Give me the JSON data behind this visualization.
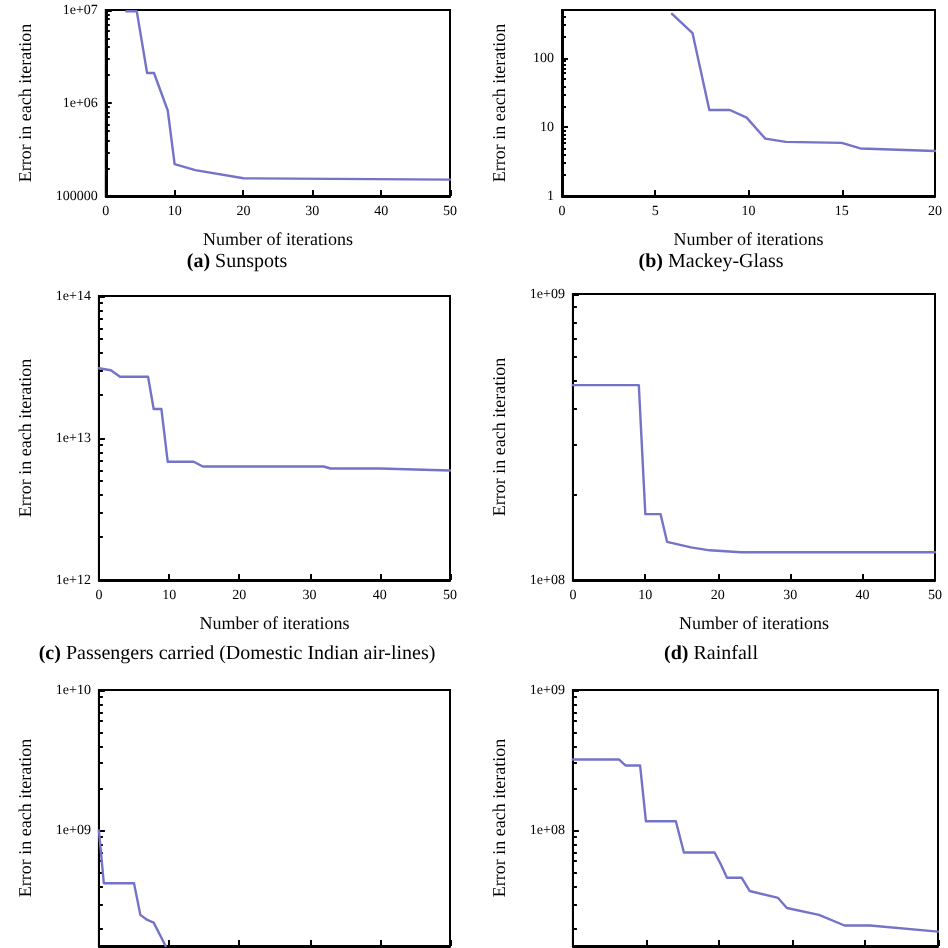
{
  "chart_data": [
    {
      "type": "line",
      "title": "(a) Sunspots",
      "xlabel": "Number of iterations",
      "ylabel": "Error in each iteration",
      "log": "y",
      "grid": false,
      "marker": "none",
      "line_style": "solid",
      "xlim": [
        0,
        50
      ],
      "xticks": [
        0,
        10,
        20,
        30,
        40,
        50
      ],
      "ylim": [
        100000,
        10000000
      ],
      "yticks": [
        100000,
        {
          "value": 1000000,
          "label": "1e+06"
        },
        {
          "value": 10000000,
          "label": "1e+07"
        }
      ],
      "series": [
        {
          "color": "#7373c8",
          "x": [
            3,
            4.5,
            6,
            7,
            9,
            10,
            13,
            20,
            50
          ],
          "values": [
            9700000,
            9700000,
            2100000,
            2100000,
            830000,
            220000,
            190000,
            155000,
            150000
          ]
        }
      ]
    },
    {
      "type": "line",
      "title": "(b) Mackey-Glass",
      "xlabel": "Number of iterations",
      "ylabel": "Error in each iteration",
      "log": "y",
      "grid": false,
      "marker": "none",
      "line_style": "solid",
      "xlim": [
        0,
        20
      ],
      "xticks": [
        0,
        5,
        10,
        15,
        20
      ],
      "ylim": [
        1,
        500
      ],
      "yticks": [
        1,
        10,
        100
      ],
      "series": [
        {
          "color": "#7373c8",
          "x": [
            5.9,
            7,
            7.9,
            9,
            9.9,
            10.9,
            12,
            15,
            16,
            20
          ],
          "values": [
            440,
            230,
            17.7,
            17.7,
            13.7,
            6.8,
            6.1,
            5.9,
            4.9,
            4.5
          ]
        }
      ]
    },
    {
      "type": "line",
      "title": "(c) Passengers carried (Domestic Indian air-lines)",
      "xlabel": "Number of iterations",
      "ylabel": "Error in each iteration",
      "log": "y",
      "grid": false,
      "marker": "none",
      "line_style": "solid",
      "xlim": [
        0,
        50
      ],
      "xticks": [
        0,
        10,
        20,
        30,
        40,
        50
      ],
      "ylim": [
        1000000000000,
        100000000000000
      ],
      "yticks": [
        {
          "value": 1000000000000,
          "label": "1e+12"
        },
        {
          "value": 10000000000000,
          "label": "1e+13"
        },
        {
          "value": 100000000000000,
          "label": "1e+14"
        }
      ],
      "series": [
        {
          "color": "#7373c8",
          "x": [
            0,
            1.7,
            3,
            7,
            7.8,
            8.9,
            9.8,
            13.5,
            14.8,
            32,
            33,
            40,
            50
          ],
          "values": [
            31000000000000,
            30000000000000,
            27000000000000,
            27000000000000,
            16000000000000,
            16000000000000,
            6800000000000,
            6800000000000,
            6300000000000,
            6300000000000,
            6100000000000,
            6100000000000,
            5900000000000
          ]
        }
      ]
    },
    {
      "type": "line",
      "title": "(d) Rainfall",
      "xlabel": "Number of iterations",
      "ylabel": "Error in each iteration",
      "log": "y",
      "grid": false,
      "marker": "none",
      "line_style": "solid",
      "xlim": [
        0,
        50
      ],
      "xticks": [
        0,
        10,
        20,
        30,
        40,
        50
      ],
      "ylim": [
        100000000,
        1000000000
      ],
      "yticks": [
        {
          "value": 100000000,
          "label": "1e+08"
        },
        {
          "value": 1000000000,
          "label": "1e+09"
        }
      ],
      "series": [
        {
          "color": "#7373c8",
          "x": [
            0,
            9.1,
            10,
            12.1,
            13,
            16.3,
            18.9,
            23.2,
            50
          ],
          "values": [
            480000000,
            480000000,
            170000000,
            170000000,
            136000000,
            130000000,
            127000000,
            125000000,
            125000000
          ]
        }
      ]
    },
    {
      "type": "line",
      "ylabel": "Error in each iteration",
      "log": "y",
      "grid": false,
      "marker": "none",
      "line_style": "solid",
      "tick_labels": "y",
      "xlim": [
        0,
        50
      ],
      "xticks": [
        {
          "value": 0,
          "label": null
        },
        {
          "value": 10,
          "label": null
        },
        {
          "value": 20,
          "label": null
        },
        {
          "value": 30,
          "label": null
        },
        {
          "value": 40,
          "label": null
        },
        {
          "value": 50,
          "label": null
        }
      ],
      "ylim": [
        150000000,
        10000000000
      ],
      "yticks": [
        {
          "value": 1000000000,
          "label": "1e+09"
        },
        {
          "value": 10000000000,
          "label": "1e+10"
        }
      ],
      "series": [
        {
          "color": "#7373c8",
          "x": [
            0,
            0.7,
            5,
            5.9,
            6.9,
            7.8,
            9.5
          ],
          "values": [
            1000000000,
            420000000,
            420000000,
            250000000,
            230000000,
            220000000,
            150000000
          ]
        }
      ]
    },
    {
      "type": "line",
      "ylabel": "Error in each iteration",
      "log": "y",
      "grid": false,
      "marker": "none",
      "line_style": "solid",
      "tick_labels": "y",
      "xlim": [
        0,
        50
      ],
      "xticks": [
        {
          "value": 0,
          "label": null
        },
        {
          "value": 10,
          "label": null
        },
        {
          "value": 20,
          "label": null
        },
        {
          "value": 30,
          "label": null
        },
        {
          "value": 40,
          "label": null
        },
        {
          "value": 50,
          "label": null
        }
      ],
      "ylim": [
        15000000,
        1000000000
      ],
      "yticks": [
        {
          "value": 100000000,
          "label": "1e+08"
        },
        {
          "value": 1000000000,
          "label": "1e+09"
        }
      ],
      "series": [
        {
          "color": "#7373c8",
          "x": [
            0,
            6.3,
            7.2,
            9.2,
            10,
            14.1,
            15.2,
            19.4,
            20.2,
            21.1,
            23.1,
            24.2,
            28.1,
            29.3,
            33.7,
            37.2,
            40.7,
            50
          ],
          "values": [
            320000000,
            320000000,
            290000000,
            290000000,
            116000000,
            116000000,
            69500000,
            69500000,
            58000000,
            46000000,
            46000000,
            37000000,
            33000000,
            28000000,
            25000000,
            21000000,
            21000000,
            19000000
          ]
        }
      ]
    }
  ]
}
